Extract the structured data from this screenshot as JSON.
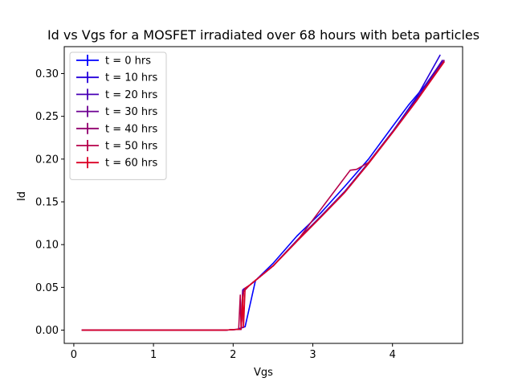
{
  "chart_data": {
    "type": "line",
    "title": "Id vs Vgs for a MOSFET irradiated over 68 hours with beta particles",
    "xlabel": "Vgs",
    "ylabel": "Id",
    "xlim": [
      -0.12,
      4.88
    ],
    "ylim": [
      -0.0155,
      0.3315
    ],
    "xticks": [
      0,
      1,
      2,
      3,
      4
    ],
    "yticks": [
      0.0,
      0.05,
      0.1,
      0.15,
      0.2,
      0.25,
      0.3
    ],
    "xtick_labels": [
      "0",
      "1",
      "2",
      "3",
      "4"
    ],
    "ytick_labels": [
      "0.00",
      "0.05",
      "0.10",
      "0.15",
      "0.20",
      "0.25",
      "0.30"
    ],
    "grid": false,
    "legend_position": "upper-left",
    "series": [
      {
        "name": "t = 0 hrs",
        "color": "#0000ff",
        "x": [
          0.1,
          0.5,
          1.0,
          1.5,
          1.9,
          2.05,
          2.15,
          2.28,
          2.5,
          2.8,
          3.1,
          3.4,
          3.7,
          4.0,
          4.2,
          4.4,
          4.62
        ],
        "y": [
          0.0,
          0.0,
          0.0,
          0.0,
          0.0,
          0.001,
          0.004,
          0.058,
          0.078,
          0.11,
          0.137,
          0.168,
          0.2,
          0.238,
          0.263,
          0.285,
          0.314
        ]
      },
      {
        "name": "t = 10 hrs",
        "color": "#2400db",
        "x": [
          0.1,
          0.5,
          1.0,
          1.5,
          1.9,
          2.08,
          2.1,
          2.13,
          2.2,
          2.5,
          2.8,
          3.1,
          3.4,
          3.7,
          4.0,
          4.3,
          4.6
        ],
        "y": [
          0.0,
          0.0,
          0.0,
          0.0,
          0.0,
          0.001,
          0.001,
          0.048,
          0.052,
          0.075,
          0.105,
          0.133,
          0.162,
          0.196,
          0.232,
          0.272,
          0.322
        ]
      },
      {
        "name": "t = 20 hrs",
        "color": "#4900b6",
        "x": [
          0.1,
          0.5,
          1.0,
          1.5,
          1.9,
          2.08,
          2.1,
          2.12,
          2.2,
          2.5,
          2.8,
          3.1,
          3.4,
          3.7,
          4.0,
          4.3,
          4.63
        ],
        "y": [
          0.0,
          0.0,
          0.0,
          0.0,
          0.0,
          0.001,
          0.001,
          0.047,
          0.052,
          0.075,
          0.105,
          0.133,
          0.162,
          0.196,
          0.232,
          0.27,
          0.316
        ]
      },
      {
        "name": "t = 30 hrs",
        "color": "#6d0092",
        "x": [
          0.1,
          0.5,
          1.0,
          1.5,
          1.9,
          2.08,
          2.1,
          2.12,
          2.2,
          2.5,
          2.8,
          3.1,
          3.4,
          3.7,
          4.0,
          4.3,
          4.65
        ],
        "y": [
          0.0,
          0.0,
          0.0,
          0.0,
          0.0,
          0.001,
          0.001,
          0.046,
          0.052,
          0.075,
          0.104,
          0.132,
          0.161,
          0.195,
          0.231,
          0.268,
          0.316
        ]
      },
      {
        "name": "t = 40 hrs",
        "color": "#92006d",
        "x": [
          0.1,
          0.5,
          1.0,
          1.5,
          1.9,
          2.08,
          2.1,
          2.13,
          2.2,
          2.5,
          2.8,
          3.1,
          3.4,
          3.7,
          4.0,
          4.3,
          4.65
        ],
        "y": [
          0.0,
          0.0,
          0.0,
          0.0,
          0.0,
          0.001,
          0.001,
          0.045,
          0.052,
          0.075,
          0.104,
          0.132,
          0.161,
          0.195,
          0.231,
          0.268,
          0.315
        ]
      },
      {
        "name": "t = 50 hrs",
        "color": "#b60049",
        "x": [
          0.1,
          0.5,
          1.0,
          1.5,
          1.9,
          2.05,
          2.07,
          2.09,
          2.1,
          2.13,
          2.2,
          2.5,
          2.8,
          3.13,
          3.47,
          3.55,
          3.7,
          4.0,
          4.3,
          4.65
        ],
        "y": [
          0.0,
          0.0,
          0.0,
          0.0,
          0.0,
          0.001,
          0.001,
          0.041,
          0.001,
          0.045,
          0.052,
          0.075,
          0.104,
          0.145,
          0.187,
          0.188,
          0.196,
          0.231,
          0.268,
          0.314
        ]
      },
      {
        "name": "t = 60 hrs",
        "color": "#db0024",
        "x": [
          0.1,
          0.5,
          1.0,
          1.5,
          1.9,
          2.08,
          2.1,
          2.12,
          2.13,
          2.15,
          2.2,
          2.5,
          2.8,
          3.1,
          3.4,
          3.7,
          4.0,
          4.3,
          4.65
        ],
        "y": [
          0.0,
          0.0,
          0.0,
          0.0,
          0.0,
          0.001,
          0.001,
          0.041,
          0.003,
          0.049,
          0.052,
          0.075,
          0.104,
          0.132,
          0.161,
          0.195,
          0.231,
          0.268,
          0.314
        ]
      }
    ]
  }
}
